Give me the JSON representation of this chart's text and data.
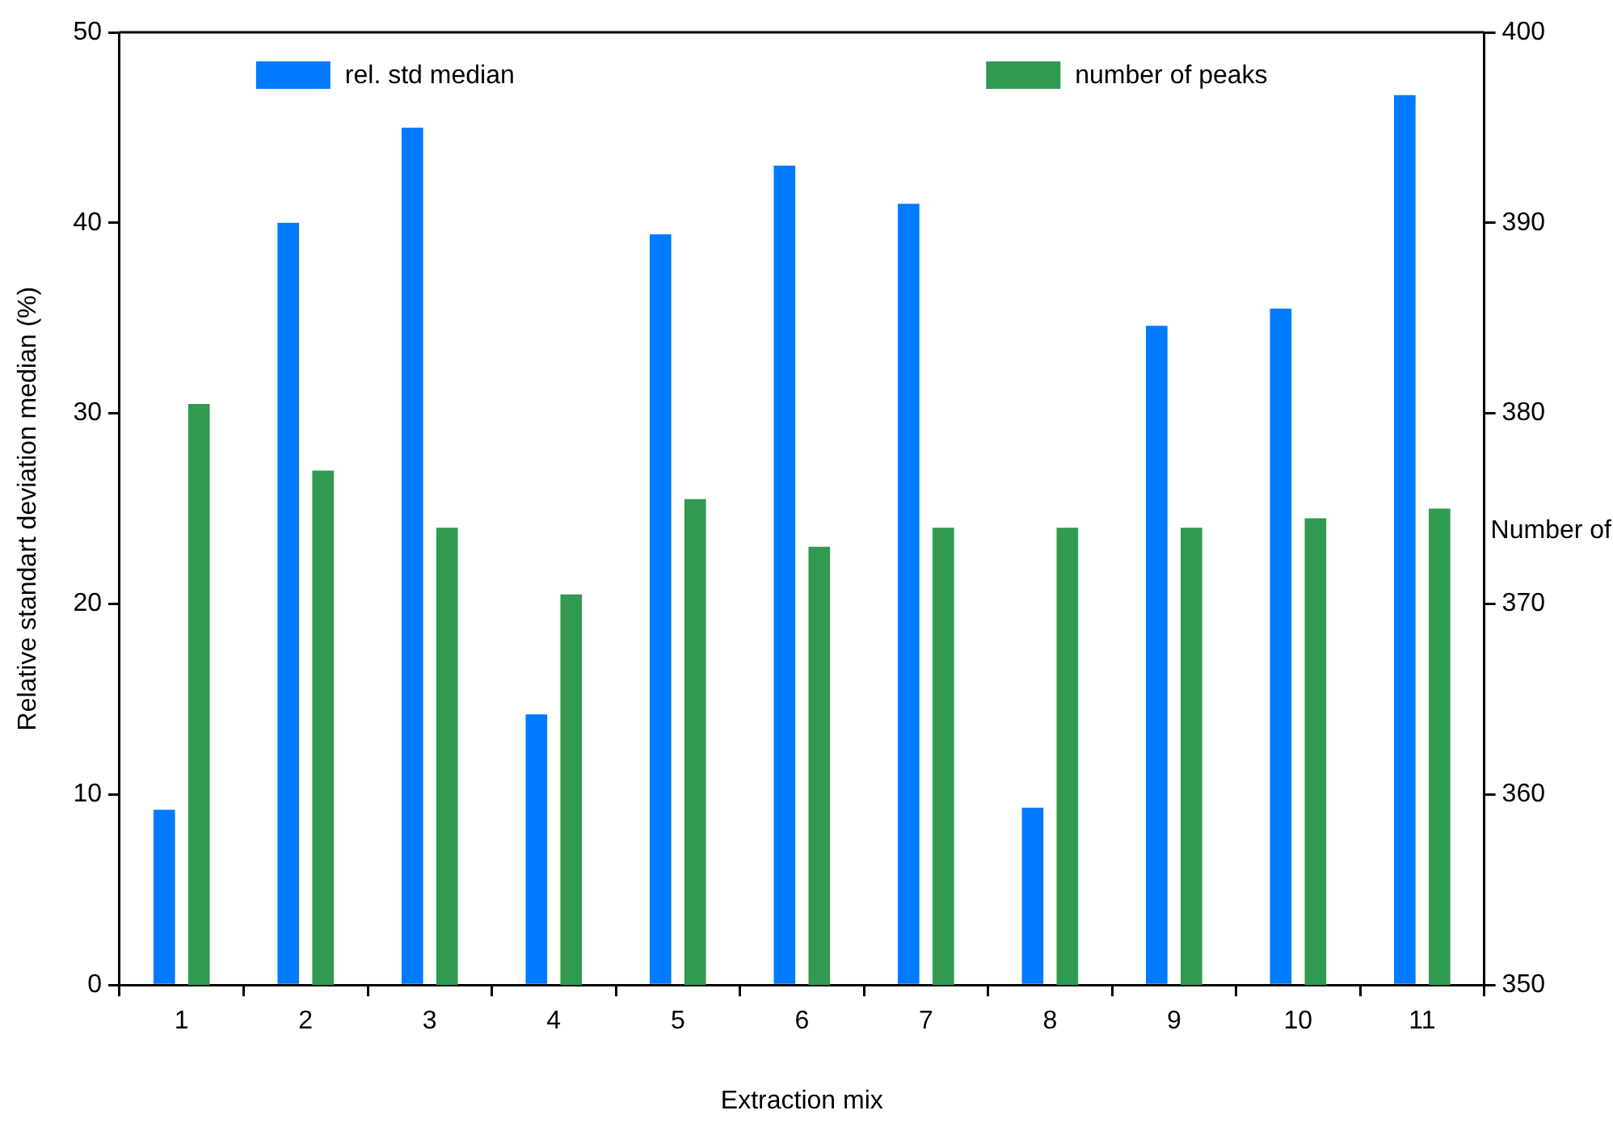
{
  "chart_data": {
    "type": "bar",
    "xlabel": "Extraction mix",
    "ylabel": "Relative standart deviation median (%)",
    "y2label": "Number of",
    "categories": [
      "1",
      "2",
      "3",
      "4",
      "5",
      "6",
      "7",
      "8",
      "9",
      "10",
      "11"
    ],
    "series": [
      {
        "name": "rel. std median",
        "color": "#007bff",
        "values": [
          9.2,
          40,
          45,
          14.2,
          39.4,
          43,
          41,
          9.3,
          34.6,
          35.5,
          46.7
        ]
      },
      {
        "name": "number of peaks",
        "color": "#2f9a50",
        "axis": "y2",
        "values": [
          380.5,
          377,
          374,
          370.5,
          375.5,
          373,
          374,
          374,
          374,
          374.5,
          375
        ]
      }
    ],
    "ylim": [
      0,
      50
    ],
    "yticks": [
      0,
      10,
      20,
      30,
      40,
      50
    ],
    "y2lim": [
      350,
      400
    ],
    "y2ticks": [
      350,
      360,
      370,
      380,
      390,
      400
    ],
    "grid": false,
    "legend": "top"
  }
}
